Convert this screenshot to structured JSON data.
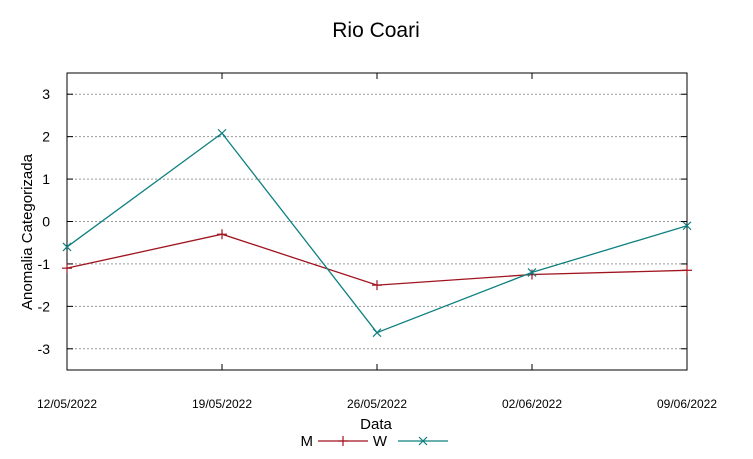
{
  "chart_data": {
    "type": "line",
    "title": "Rio Coari",
    "xlabel": "Data",
    "ylabel": "Anomalia Categorizada",
    "categories": [
      "12/05/2022",
      "19/05/2022",
      "26/05/2022",
      "02/06/2022",
      "09/06/2022"
    ],
    "ylim": [
      -3.5,
      3.5
    ],
    "yticks": [
      "3",
      "2",
      "1",
      "0",
      "-1",
      "-2",
      "-3"
    ],
    "ytick_values": [
      3,
      2,
      1,
      0,
      -1,
      -2,
      -3
    ],
    "grid": true,
    "legend_position": "bottom",
    "series": [
      {
        "name": "M",
        "values": [
          -1.1,
          -0.3,
          -1.5,
          -1.25,
          -1.15
        ],
        "color": "#a0141e",
        "marker": "plus"
      },
      {
        "name": "W",
        "values": [
          -0.6,
          2.08,
          -2.62,
          -1.2,
          -0.1
        ],
        "color": "#0f8080",
        "marker": "x"
      }
    ]
  }
}
